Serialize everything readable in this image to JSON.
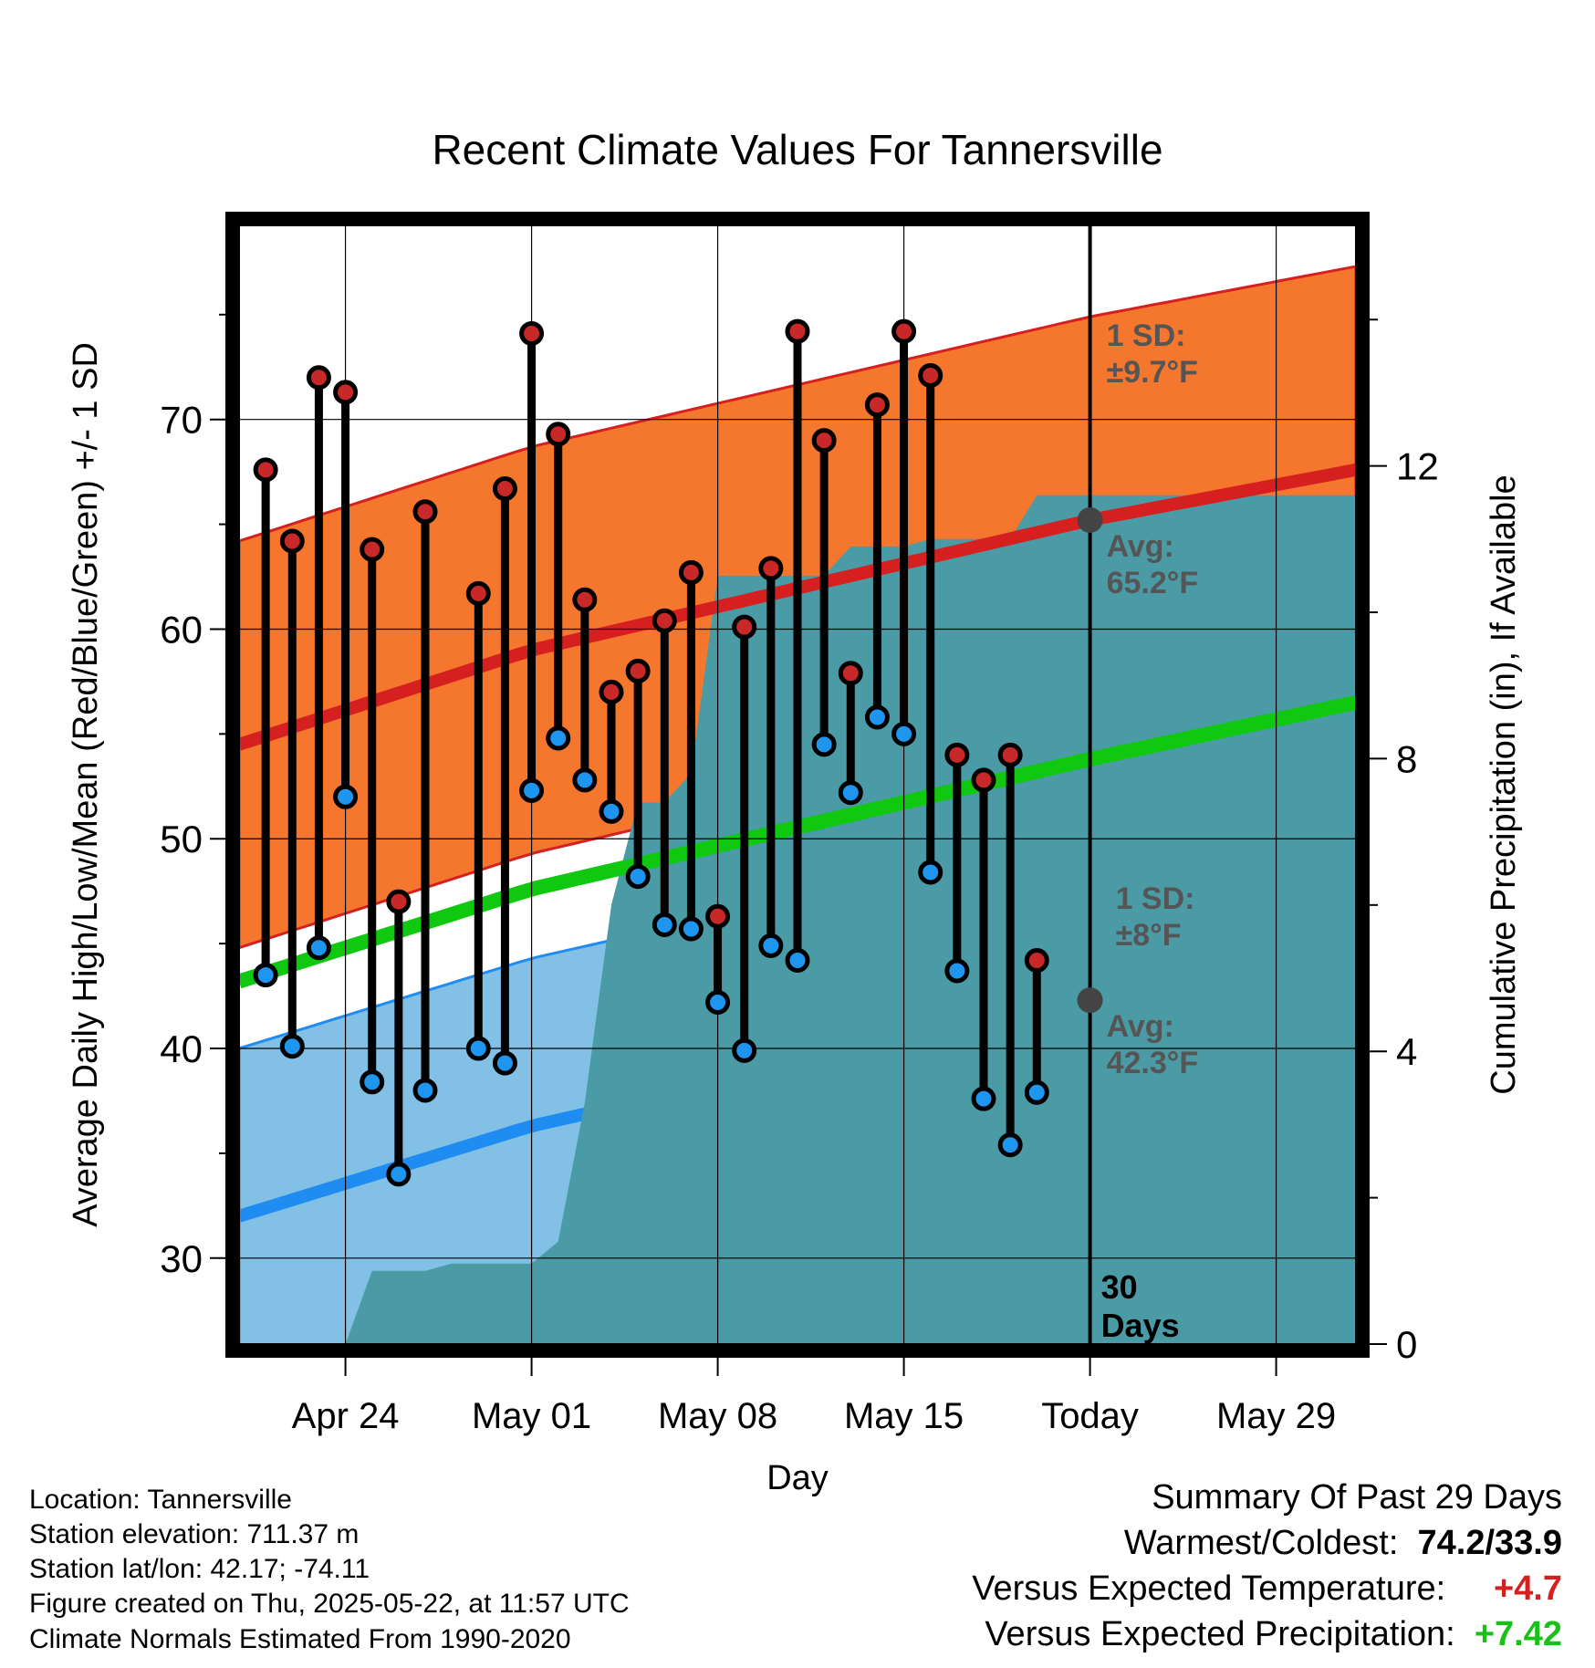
{
  "chart_data": {
    "type": "line",
    "title": "Recent Climate Values For Tannersville",
    "xlabel": "Day",
    "ylabel": "Average Daily High/Low/Mean (Red/Blue/Green) +/- 1 SD",
    "y2label": "Cumulative Precipitation (in), If Available",
    "ylim": [
      25.9,
      79.3
    ],
    "y2lim": [
      0,
      15.3
    ],
    "xlim": [
      "2025-04-20",
      "2025-06-01"
    ],
    "x_ticks": [
      {
        "date": "2025-04-24",
        "label": "Apr 24"
      },
      {
        "date": "2025-05-01",
        "label": "May 01"
      },
      {
        "date": "2025-05-08",
        "label": "May 08"
      },
      {
        "date": "2025-05-15",
        "label": "May 15"
      },
      {
        "date": "2025-05-22",
        "label": "Today"
      },
      {
        "date": "2025-05-29",
        "label": "May 29"
      }
    ],
    "y_ticks": [
      30,
      40,
      50,
      60,
      70
    ],
    "y2_ticks": [
      0,
      4,
      8,
      12
    ],
    "today": "2025-05-22",
    "today_label": "30\nDays",
    "colors": {
      "high_band": "#f5772d",
      "high_avg": "#d62020",
      "low_band": "#82c0e6",
      "low_avg": "#1e8cf0",
      "mean": "#0fc80f",
      "precip": "#4a9ba5",
      "high_marker": "#c82828",
      "low_marker": "#1e96f0"
    },
    "normals": {
      "dates": [
        "2025-04-20",
        "2025-05-01",
        "2025-05-22",
        "2025-06-01"
      ],
      "high_avg": [
        54.5,
        59.0,
        65.2,
        67.6
      ],
      "high_sd": 9.7,
      "low_avg": [
        32.0,
        36.3,
        42.3,
        44.8
      ],
      "low_sd": 8.0,
      "mean_avg": [
        43.2,
        47.6,
        53.8,
        56.5
      ]
    },
    "daily": [
      {
        "date": "2025-04-21",
        "high": 67.6,
        "low": 43.5
      },
      {
        "date": "2025-04-22",
        "high": 64.2,
        "low": 40.1
      },
      {
        "date": "2025-04-23",
        "high": 72.0,
        "low": 44.8
      },
      {
        "date": "2025-04-24",
        "high": 71.3,
        "low": 52.0
      },
      {
        "date": "2025-04-25",
        "high": 63.8,
        "low": 38.4
      },
      {
        "date": "2025-04-26",
        "high": 47.0,
        "low": 34.0
      },
      {
        "date": "2025-04-27",
        "high": 65.6,
        "low": 38.0
      },
      {
        "date": "2025-04-29",
        "high": 61.7,
        "low": 40.0
      },
      {
        "date": "2025-04-30",
        "high": 66.7,
        "low": 39.3
      },
      {
        "date": "2025-05-01",
        "high": 74.1,
        "low": 52.3
      },
      {
        "date": "2025-05-02",
        "high": 69.3,
        "low": 54.8
      },
      {
        "date": "2025-05-03",
        "high": 61.4,
        "low": 52.8
      },
      {
        "date": "2025-05-04",
        "high": 57.0,
        "low": 51.3
      },
      {
        "date": "2025-05-05",
        "high": 58.0,
        "low": 48.2
      },
      {
        "date": "2025-05-06",
        "high": 60.4,
        "low": 45.9
      },
      {
        "date": "2025-05-07",
        "high": 62.7,
        "low": 45.7
      },
      {
        "date": "2025-05-08",
        "high": 46.3,
        "low": 42.2
      },
      {
        "date": "2025-05-09",
        "high": 60.1,
        "low": 39.9
      },
      {
        "date": "2025-05-10",
        "high": 62.9,
        "low": 44.9
      },
      {
        "date": "2025-05-11",
        "high": 74.2,
        "low": 44.2
      },
      {
        "date": "2025-05-12",
        "high": 69.0,
        "low": 54.5
      },
      {
        "date": "2025-05-13",
        "high": 57.9,
        "low": 52.2
      },
      {
        "date": "2025-05-14",
        "high": 70.7,
        "low": 55.8
      },
      {
        "date": "2025-05-15",
        "high": 74.2,
        "low": 55.0
      },
      {
        "date": "2025-05-16",
        "high": 72.1,
        "low": 48.4
      },
      {
        "date": "2025-05-17",
        "high": 54.0,
        "low": 43.7
      },
      {
        "date": "2025-05-18",
        "high": 52.8,
        "low": 37.6
      },
      {
        "date": "2025-05-19",
        "high": 54.0,
        "low": 35.4
      },
      {
        "date": "2025-05-20",
        "high": 44.2,
        "low": 37.9
      }
    ],
    "precip": [
      {
        "date": "2025-04-22",
        "value": 0.0
      },
      {
        "date": "2025-04-23",
        "value": 0.0
      },
      {
        "date": "2025-04-24",
        "value": 0.0
      },
      {
        "date": "2025-04-25",
        "value": 1.0
      },
      {
        "date": "2025-04-26",
        "value": 1.0
      },
      {
        "date": "2025-04-27",
        "value": 1.0
      },
      {
        "date": "2025-04-28",
        "value": 1.1
      },
      {
        "date": "2025-04-29",
        "value": 1.1
      },
      {
        "date": "2025-04-30",
        "value": 1.1
      },
      {
        "date": "2025-05-01",
        "value": 1.1
      },
      {
        "date": "2025-05-02",
        "value": 1.4
      },
      {
        "date": "2025-05-03",
        "value": 3.3
      },
      {
        "date": "2025-05-04",
        "value": 6.0
      },
      {
        "date": "2025-05-05",
        "value": 7.4
      },
      {
        "date": "2025-05-06",
        "value": 7.4
      },
      {
        "date": "2025-05-07",
        "value": 7.8
      },
      {
        "date": "2025-05-08",
        "value": 10.5
      },
      {
        "date": "2025-05-09",
        "value": 10.5
      },
      {
        "date": "2025-05-10",
        "value": 10.5
      },
      {
        "date": "2025-05-11",
        "value": 10.5
      },
      {
        "date": "2025-05-12",
        "value": 10.5
      },
      {
        "date": "2025-05-13",
        "value": 10.9
      },
      {
        "date": "2025-05-14",
        "value": 10.9
      },
      {
        "date": "2025-05-15",
        "value": 10.9
      },
      {
        "date": "2025-05-16",
        "value": 11.0
      },
      {
        "date": "2025-05-17",
        "value": 11.0
      },
      {
        "date": "2025-05-18",
        "value": 11.0
      },
      {
        "date": "2025-05-19",
        "value": 11.0
      },
      {
        "date": "2025-05-20",
        "value": 11.6
      },
      {
        "date": "2025-05-21",
        "value": 11.6
      },
      {
        "date": "2025-06-01",
        "value": 11.6
      }
    ],
    "annotations": {
      "high_sd_label": "1 SD:",
      "high_sd_value": "±9.7°F",
      "high_avg_label": "Avg:",
      "high_avg_value": "65.2°F",
      "low_sd_label": "1 SD:",
      "low_sd_value": "±8°F",
      "low_avg_label": "Avg:",
      "low_avg_value": "42.3°F"
    }
  },
  "footer": {
    "location": "Location: Tannersville",
    "elevation": "Station elevation: 711.37 m",
    "latlon": "Station lat/lon: 42.17; -74.11",
    "created": "Figure created on Thu, 2025-05-22, at 11:57 UTC",
    "normals": "Climate Normals Estimated From 1990-2020"
  },
  "summary": {
    "title": "Summary Of Past 29 Days",
    "warm_cold_label": "Warmest/Coldest:",
    "warm_cold_value": "74.2/33.9",
    "temp_label": "Versus Expected Temperature:",
    "temp_value": "+4.7",
    "temp_color": "#d62020",
    "precip_label": "Versus Expected Precipitation:",
    "precip_value": "+7.42",
    "precip_color": "#18c018"
  }
}
